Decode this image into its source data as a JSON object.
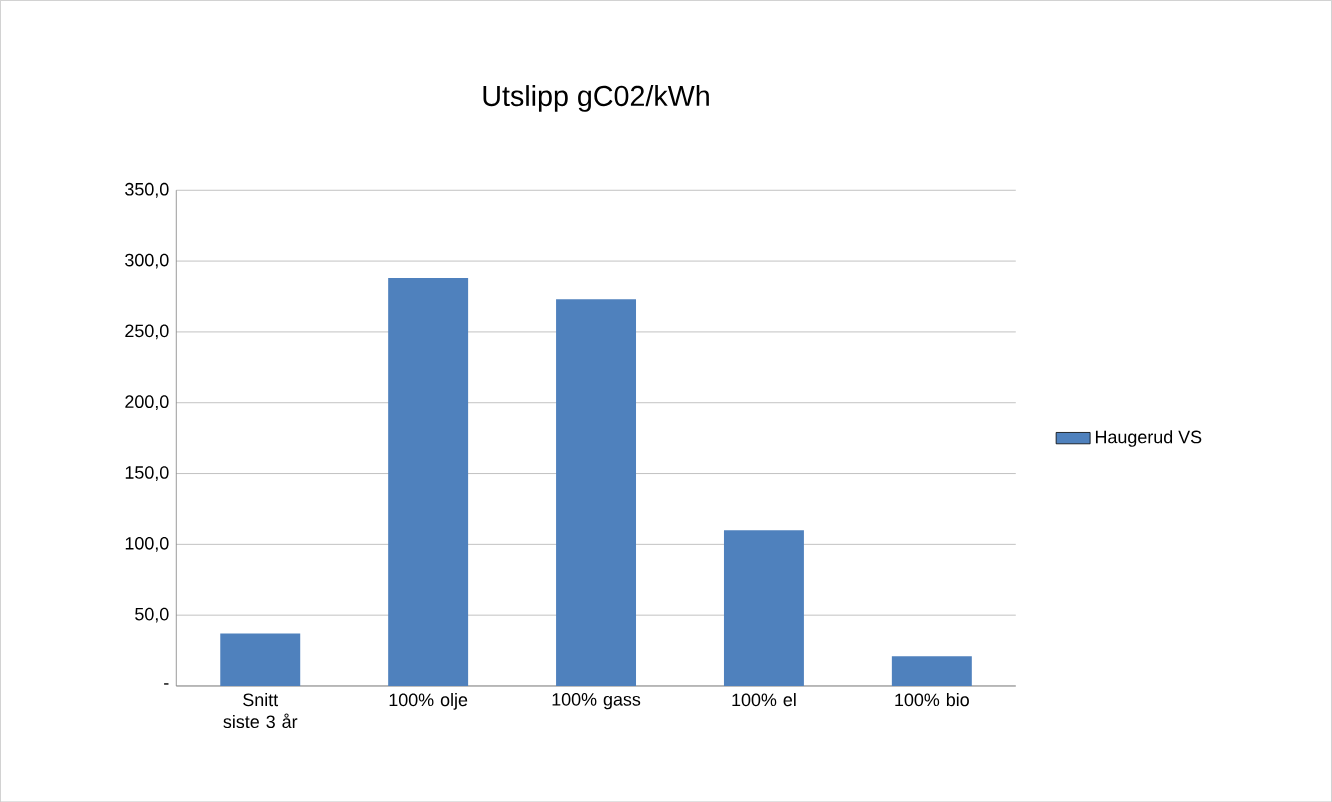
{
  "chart_data": {
    "type": "bar",
    "title": "Utslipp gC02/kWh",
    "categories": [
      "Snitt siste 3 år",
      "100% olje",
      "100% gass",
      "100% el",
      "100% bio"
    ],
    "series": [
      {
        "name": "Haugerud VS",
        "color": "#4f81bd",
        "values": [
          37,
          288,
          273,
          110,
          21
        ]
      }
    ],
    "ylim": [
      0,
      350
    ],
    "yticks": [
      {
        "value": 0,
        "label": "-"
      },
      {
        "value": 50,
        "label": "50,0"
      },
      {
        "value": 100,
        "label": "100,0"
      },
      {
        "value": 150,
        "label": "150,0"
      },
      {
        "value": 200,
        "label": "200,0"
      },
      {
        "value": 250,
        "label": "250,0"
      },
      {
        "value": 300,
        "label": "300,0"
      },
      {
        "value": 350,
        "label": "350,0"
      }
    ],
    "grid": "y",
    "legend": "right"
  }
}
